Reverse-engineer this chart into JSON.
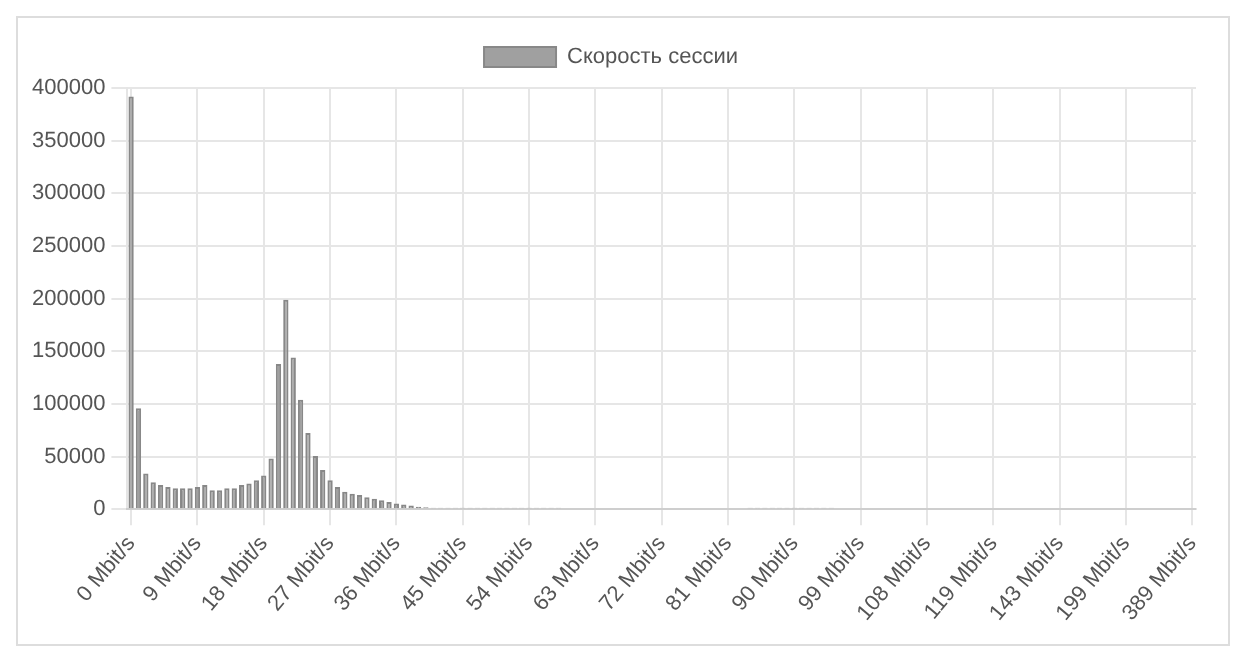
{
  "chart_data": {
    "type": "bar",
    "categories": [
      "0 Mbit/s",
      null,
      null,
      null,
      null,
      null,
      null,
      null,
      null,
      "9 Mbit/s",
      null,
      null,
      null,
      null,
      null,
      null,
      null,
      null,
      "18 Mbit/s",
      null,
      null,
      null,
      null,
      null,
      null,
      null,
      null,
      "27 Mbit/s",
      null,
      null,
      null,
      null,
      null,
      null,
      null,
      null,
      "36 Mbit/s",
      null,
      null,
      null,
      null,
      null,
      null,
      null,
      null,
      "45 Mbit/s",
      null,
      null,
      null,
      null,
      null,
      null,
      null,
      null,
      "54 Mbit/s",
      null,
      null,
      null,
      null,
      null,
      null,
      null,
      null,
      "63 Mbit/s",
      null,
      null,
      null,
      null,
      null,
      null,
      null,
      null,
      "72 Mbit/s",
      null,
      null,
      null,
      null,
      null,
      null,
      null,
      null,
      "81 Mbit/s",
      null,
      null,
      null,
      null,
      null,
      null,
      null,
      null,
      "90 Mbit/s",
      null,
      null,
      null,
      null,
      null,
      null,
      null,
      null,
      "99 Mbit/s",
      null,
      null,
      null,
      null,
      null,
      null,
      null,
      null,
      "108 Mbit/s",
      null,
      null,
      null,
      null,
      null,
      null,
      null,
      null,
      "119 Mbit/s",
      null,
      null,
      null,
      null,
      null,
      null,
      null,
      null,
      "143 Mbit/s",
      null,
      null,
      null,
      null,
      null,
      null,
      null,
      null,
      "199 Mbit/s",
      null,
      null,
      null,
      null,
      null,
      null,
      null,
      null,
      "389 Mbit/s"
    ],
    "series": [
      {
        "name": "Скорость сессии",
        "color": "#a0a0a0",
        "values": [
          392000,
          96000,
          34000,
          25700,
          23100,
          21200,
          19900,
          19900,
          19900,
          21200,
          23100,
          18000,
          18000,
          19900,
          19900,
          23100,
          24400,
          27600,
          32100,
          48200,
          138000,
          199000,
          144000,
          104000,
          72500,
          50700,
          37200,
          27600,
          21200,
          16700,
          14800,
          13500,
          11500,
          10000,
          8500,
          7000,
          5500,
          4500,
          3500,
          2500,
          2000,
          1500,
          1500,
          1500,
          1500,
          1500,
          1500,
          1500,
          1500,
          1500,
          1500,
          1500,
          1500,
          1500,
          1500,
          1500,
          1500,
          1500,
          1500,
          0,
          0,
          0,
          0,
          0,
          0,
          0,
          0,
          0,
          0,
          0,
          0,
          0,
          0,
          0,
          0,
          0,
          0,
          0,
          0,
          0,
          0,
          0,
          0,
          0,
          1500,
          1500,
          1500,
          1500,
          1500,
          1500,
          1500,
          1500,
          1500,
          1500,
          1500,
          1500,
          0,
          0,
          0,
          0,
          0,
          0,
          0,
          0,
          0,
          0,
          0,
          0,
          0,
          0,
          0,
          0,
          0,
          0,
          0,
          0,
          0,
          0,
          0,
          0,
          0,
          0,
          0,
          0,
          0,
          0,
          0,
          0,
          0,
          0,
          0,
          0,
          0,
          0,
          0,
          0,
          0,
          0,
          0,
          0,
          0,
          0,
          0,
          0,
          0
        ]
      }
    ],
    "ylim": [
      0,
      400000
    ],
    "yticks": [
      0,
      50000,
      100000,
      150000,
      200000,
      250000,
      300000,
      350000,
      400000
    ],
    "grid": true,
    "legend": "top"
  }
}
